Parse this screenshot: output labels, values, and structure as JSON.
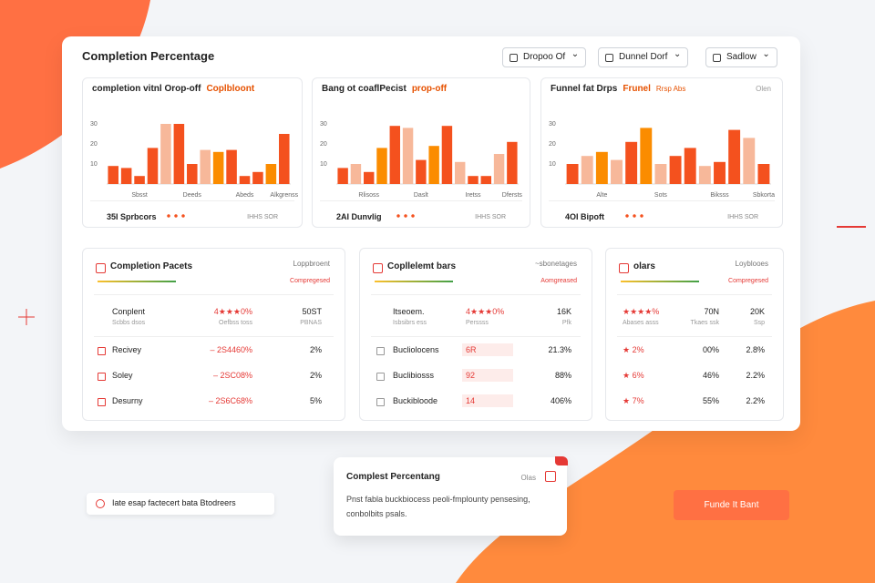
{
  "header": {
    "title": "Completion Percentage",
    "dropdowns": [
      "Dropoo Of",
      "Dunnel Dorf",
      "Sadlow"
    ]
  },
  "chart_data": [
    {
      "type": "bar",
      "title": "completion vitnl Orop-off",
      "subtitle": "Coplbloont",
      "categories": [
        null,
        null,
        "Sbsst",
        null,
        null,
        null,
        "Deeds",
        null,
        null,
        null,
        "Abeds",
        null,
        null,
        "Alkgrenss"
      ],
      "values": [
        9,
        8,
        4,
        18,
        30,
        30,
        10,
        17,
        16,
        17,
        4,
        6,
        10,
        25
      ],
      "colors": [
        "#f4511e",
        "#f4511e",
        "#f4511e",
        "#f4511e",
        "#f7b89a",
        "#f4511e",
        "#f4511e",
        "#f7b89a",
        "#fb8c00",
        "#f4511e",
        "#f4511e",
        "#f4511e",
        "#fb8c00",
        "#f4511e"
      ],
      "ylim": [
        0,
        40
      ],
      "yticks": [
        10,
        20,
        30
      ],
      "grid": false,
      "footer": "35I Sprbcors",
      "link": "IHHS SOR"
    },
    {
      "type": "bar",
      "title": "Bang ot coaflPecist",
      "subtitle": "prop-off",
      "categories": [
        null,
        null,
        "Rlisoss",
        null,
        null,
        null,
        "Daslt",
        null,
        null,
        null,
        "Iretss",
        null,
        null,
        "Dfersts"
      ],
      "values": [
        8,
        10,
        6,
        18,
        29,
        28,
        12,
        19,
        29,
        11,
        4,
        4,
        15,
        21
      ],
      "colors": [
        "#f4511e",
        "#f7b89a",
        "#f4511e",
        "#fb8c00",
        "#f4511e",
        "#f7b89a",
        "#f4511e",
        "#fb8c00",
        "#f4511e",
        "#f7b89a",
        "#f4511e",
        "#f4511e",
        "#f7b89a",
        "#f4511e"
      ],
      "ylim": [
        0,
        40
      ],
      "yticks": [
        10,
        20,
        30
      ],
      "grid": false,
      "footer": "2AI Dunvlig",
      "link": "IHHS SOR"
    },
    {
      "type": "bar",
      "title": "Funnel fat Drps",
      "subtitle": "Frunel",
      "categories": [
        null,
        null,
        "Alte",
        null,
        null,
        null,
        "Sots",
        null,
        null,
        null,
        "Biksss",
        null,
        null,
        "Sbkorta"
      ],
      "values": [
        10,
        14,
        16,
        12,
        21,
        28,
        10,
        14,
        18,
        9,
        11,
        27,
        23,
        10
      ],
      "colors": [
        "#f4511e",
        "#f7b89a",
        "#fb8c00",
        "#f7b89a",
        "#f4511e",
        "#fb8c00",
        "#f7b89a",
        "#f4511e",
        "#f4511e",
        "#f7b89a",
        "#f4511e",
        "#f4511e",
        "#f7b89a",
        "#f4511e"
      ],
      "ylim": [
        0,
        40
      ],
      "yticks": [
        10,
        20,
        30
      ],
      "grid": false,
      "tag": "Rrsp Abs",
      "note": "Olen",
      "footer": "4OI Bipoft",
      "link": "IHHS SOR"
    }
  ],
  "tables": [
    {
      "title": "Completion Pacets",
      "tag": "Loppbroent",
      "link": "Compregesed",
      "head": [
        {
          "text": "Conplent",
          "sub": "Scbbs dsos"
        },
        {
          "text": "4★★★0%",
          "sub": "Oefbss toss"
        },
        {
          "text": "50ST",
          "sub": "PBNAS"
        }
      ],
      "rows": [
        [
          "Recivey",
          "– 2S4460%",
          "2%"
        ],
        [
          "Soley",
          "– 2SC08%",
          "2%"
        ],
        [
          "Desurny",
          "– 2S6C68%",
          "5%"
        ]
      ]
    },
    {
      "title": "Copllelemt bars",
      "tag": "~sbonetages",
      "link": "Aomgreased",
      "head": [
        {
          "text": "Itseoem.",
          "sub": "Isbsibrs ess"
        },
        {
          "text": "4★★★0%",
          "sub": "Perssss"
        },
        {
          "text": "16K",
          "sub": "Pfk"
        }
      ],
      "rows": [
        [
          "Bucliolocens",
          "6R",
          "21.3%"
        ],
        [
          "Buclibiosss",
          "92",
          "88%"
        ],
        [
          "Buckibloode",
          "14",
          "406%"
        ]
      ]
    },
    {
      "title": "olars",
      "tag": "Loyblooes",
      "link": "Compregesed",
      "head": [
        {
          "text": "★★★★%",
          "sub": "Abases asss"
        },
        {
          "text": "70N",
          "sub": "Tkaes ssk"
        },
        {
          "text": "20K",
          "sub": "Ssp"
        }
      ],
      "rows": [
        [
          "★ 2%",
          "00%",
          "2.8%"
        ],
        [
          "★ 6%",
          "46%",
          "2.2%"
        ],
        [
          "★ 7%",
          "55%",
          "2.2%"
        ]
      ]
    }
  ],
  "popup": {
    "title": "Complest Percentang",
    "tag": "Olas",
    "body": "Pnst fabla buckbiocess peoli-fmplounty pensesing, conbolbits psals."
  },
  "pill": "Iate esap factecert bata Btodreers",
  "button": "Funde It Bant"
}
